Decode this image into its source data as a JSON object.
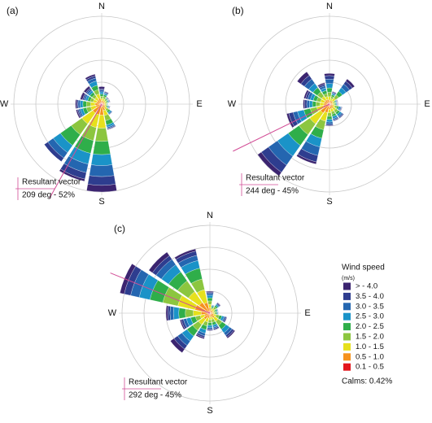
{
  "chart_data": [
    {
      "type": "windrose",
      "label": "(a)",
      "categories": [
        "N",
        null,
        null,
        null,
        "E",
        null,
        null,
        null,
        "S",
        null,
        null,
        null,
        "W",
        null,
        null,
        null
      ],
      "rlim": [
        0,
        20
      ],
      "rticks": [
        5,
        10,
        15,
        20
      ],
      "series": [
        {
          "values": [
            0.5,
            0.1,
            0.1,
            0.1,
            0,
            0.1,
            0,
            0.1,
            1.5,
            0.5,
            0,
            0.3,
            0.3,
            0.5,
            0.5,
            0.4
          ]
        },
        {
          "values": [
            0.3,
            0.2,
            0.1,
            0.1,
            0,
            0.1,
            0.1,
            0.2,
            2,
            1.5,
            1,
            0.3,
            0.3,
            0.3,
            0.3,
            0.5
          ]
        },
        {
          "values": [
            0.4,
            0.2,
            0.1,
            0.1,
            0.1,
            0.1,
            0.2,
            0.3,
            2.5,
            2,
            1.5,
            0.4,
            0.5,
            0.4,
            0.4,
            0.7
          ]
        },
        {
          "values": [
            0.5,
            0.3,
            0.1,
            0.2,
            0.1,
            0.2,
            0.3,
            0.5,
            2.5,
            2.5,
            2,
            0.6,
            0.6,
            0.5,
            0.5,
            1
          ]
        },
        {
          "values": [
            0.5,
            0.4,
            0.2,
            0.2,
            0.1,
            0.2,
            0.4,
            1,
            3,
            3,
            3,
            0.8,
            0.8,
            0.6,
            0.6,
            1
          ]
        },
        {
          "values": [
            0.5,
            0.5,
            0.3,
            0.3,
            0.2,
            0.3,
            0.5,
            1.2,
            3,
            3,
            3,
            1,
            1,
            0.7,
            0.7,
            1
          ]
        },
        {
          "values": [
            0.5,
            0.5,
            0.4,
            0.3,
            0.3,
            0.3,
            0.5,
            1.2,
            3,
            3,
            3,
            1.2,
            1,
            0.8,
            0.8,
            1
          ]
        },
        {
          "values": [
            0.5,
            0.5,
            0.4,
            0.4,
            0.4,
            0.4,
            0.6,
            1,
            2,
            2,
            2,
            1,
            1,
            0.8,
            0.8,
            1
          ]
        },
        {
          "values": [
            0.3,
            0.3,
            0.3,
            0.3,
            0.3,
            0.3,
            0.4,
            0.5,
            0.5,
            0.5,
            0.5,
            0.4,
            0.5,
            0.4,
            0.4,
            0.4
          ]
        }
      ],
      "resultant": {
        "title": "Resultant vector",
        "text": "209 deg - 52%",
        "direction": 209
      }
    },
    {
      "type": "windrose",
      "label": "(b)",
      "categories": [
        "N",
        null,
        null,
        null,
        "E",
        null,
        null,
        null,
        "S",
        null,
        null,
        null,
        "W",
        null,
        null,
        null
      ],
      "rlim": [
        0,
        20
      ],
      "rticks": [
        5,
        10,
        15,
        20
      ],
      "series": [
        {
          "values": [
            0.5,
            0.1,
            0.6,
            0.1,
            0.1,
            0.1,
            0.1,
            0.1,
            0.1,
            0.5,
            1,
            0.5,
            0.3,
            0.4,
            1,
            0.3
          ]
        },
        {
          "values": [
            0.8,
            0.2,
            0.8,
            0.1,
            0.1,
            0.1,
            0.2,
            0.2,
            0.3,
            1.5,
            2,
            1,
            0.5,
            0.5,
            1,
            0.4
          ]
        },
        {
          "values": [
            1,
            0.2,
            1,
            0.1,
            0.1,
            0.2,
            0.3,
            0.3,
            0.5,
            2,
            2.5,
            1,
            0.6,
            0.6,
            1.2,
            0.5
          ]
        },
        {
          "values": [
            1,
            0.3,
            1,
            0.2,
            0.2,
            0.4,
            0.5,
            0.5,
            0.6,
            2,
            3,
            1.5,
            0.7,
            0.7,
            1.2,
            0.6
          ]
        },
        {
          "values": [
            1,
            0.4,
            1,
            0.2,
            0.2,
            0.4,
            0.5,
            0.5,
            0.7,
            2,
            3,
            1.5,
            0.8,
            0.8,
            1.2,
            0.7
          ]
        },
        {
          "values": [
            1,
            0.5,
            0.9,
            0.3,
            0.3,
            0.5,
            0.6,
            0.6,
            0.8,
            2,
            3,
            1.5,
            0.9,
            0.9,
            1.2,
            0.7
          ]
        },
        {
          "values": [
            0.8,
            0.5,
            0.8,
            0.3,
            0.3,
            0.5,
            0.7,
            0.7,
            0.8,
            2,
            3,
            1.5,
            0.9,
            0.9,
            1,
            0.7
          ]
        },
        {
          "values": [
            0.6,
            0.5,
            0.6,
            0.4,
            0.4,
            0.5,
            0.7,
            0.7,
            0.8,
            1.5,
            2,
            1,
            0.8,
            0.8,
            0.8,
            0.7
          ]
        },
        {
          "values": [
            0.3,
            0.3,
            0.3,
            0.3,
            0.3,
            0.3,
            0.4,
            0.4,
            0.4,
            0.5,
            0.5,
            0.5,
            0.5,
            0.4,
            0.4,
            0.4
          ]
        }
      ],
      "resultant": {
        "title": "Resultant vector",
        "text": "244 deg - 45%",
        "direction": 244
      }
    },
    {
      "type": "windrose",
      "label": "(c)",
      "categories": [
        "N",
        null,
        null,
        null,
        "E",
        null,
        null,
        null,
        "S",
        null,
        null,
        null,
        "W",
        null,
        null,
        null
      ],
      "rlim": [
        0,
        20
      ],
      "rticks": [
        5,
        10,
        15,
        20
      ],
      "series": [
        {
          "values": [
            0.2,
            0,
            0.1,
            0,
            0,
            0.1,
            0.3,
            0.1,
            0.1,
            0.3,
            1,
            0.3,
            0.4,
            1,
            1,
            0.5
          ]
        },
        {
          "values": [
            0.3,
            0.1,
            0.2,
            0.1,
            0.1,
            0.3,
            0.5,
            0.3,
            0.3,
            0.4,
            1,
            0.5,
            0.5,
            1.5,
            1,
            1
          ]
        },
        {
          "values": [
            0.4,
            0.1,
            0.2,
            0.1,
            0.1,
            0.3,
            0.7,
            0.3,
            0.3,
            0.6,
            1.2,
            0.7,
            0.8,
            2,
            1.5,
            1.2
          ]
        },
        {
          "values": [
            0.6,
            0.2,
            0.3,
            0.2,
            0.2,
            0.5,
            1,
            0.5,
            0.5,
            0.8,
            1.4,
            1,
            1.2,
            2.5,
            2,
            1.8
          ]
        },
        {
          "values": [
            0.7,
            0.3,
            0.4,
            0.3,
            0.3,
            0.6,
            1.1,
            0.6,
            0.6,
            0.9,
            1.6,
            1.1,
            1.5,
            3,
            2.5,
            2.5
          ]
        },
        {
          "values": [
            0.8,
            0.3,
            0.5,
            0.3,
            0.3,
            0.7,
            1.1,
            0.7,
            0.7,
            0.9,
            1.6,
            1.1,
            1.8,
            3.5,
            3,
            2.5
          ]
        },
        {
          "values": [
            0.8,
            0.3,
            0.5,
            0.3,
            0.3,
            0.6,
            1,
            0.6,
            0.6,
            0.9,
            1.5,
            1,
            1.8,
            4,
            3,
            3
          ]
        },
        {
          "values": [
            0.8,
            0.4,
            0.5,
            0.4,
            0.4,
            0.6,
            0.9,
            0.6,
            0.6,
            0.8,
            1.2,
            0.9,
            1.5,
            3,
            2.5,
            2
          ]
        },
        {
          "values": [
            0.4,
            0.3,
            0.3,
            0.3,
            0.3,
            0.3,
            0.4,
            0.3,
            0.3,
            0.4,
            0.5,
            0.4,
            0.5,
            0.5,
            0.5,
            0.5
          ]
        }
      ],
      "resultant": {
        "title": "Resultant vector",
        "text": "292 deg - 45%",
        "direction": 292
      }
    }
  ],
  "legend": {
    "title": "Wind speed",
    "unit": "(m/s)",
    "items": [
      {
        "name": "> - 4.0",
        "color": "#3b2470"
      },
      {
        "name": "3.5 - 4.0",
        "color": "#2e3d8f"
      },
      {
        "name": "3.0 - 3.5",
        "color": "#2466b0"
      },
      {
        "name": "2.5 - 3.0",
        "color": "#1a93c8"
      },
      {
        "name": "2.0 - 2.5",
        "color": "#2fae4a"
      },
      {
        "name": "1.5 - 2.0",
        "color": "#8cc63f"
      },
      {
        "name": "1.0 - 1.5",
        "color": "#e6e01c"
      },
      {
        "name": "0.5 - 1.0",
        "color": "#f5921e"
      },
      {
        "name": "0.1 - 0.5",
        "color": "#e3161c"
      }
    ],
    "calms": "Calms: 0.42%"
  }
}
